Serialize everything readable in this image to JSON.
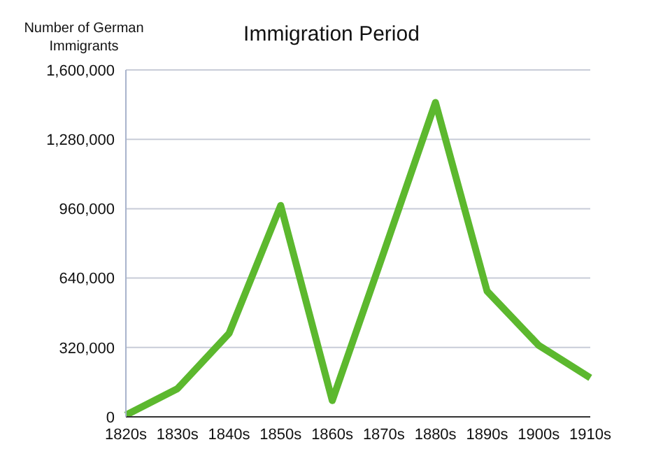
{
  "chart_data": {
    "type": "line",
    "title": "Immigration Period",
    "ylabel": "Number of German Immigrants",
    "categories": [
      "1820s",
      "1830s",
      "1840s",
      "1850s",
      "1860s",
      "1870s",
      "1880s",
      "1890s",
      "1900s",
      "1910s"
    ],
    "series": [
      {
        "color": "#5cb82e",
        "values": [
          8000,
          130000,
          385000,
          975000,
          75000,
          760000,
          1450000,
          580000,
          330000,
          180000
        ]
      }
    ],
    "ylim": [
      0,
      1600000
    ],
    "yticks": [
      0,
      {
        "value": 320000,
        "label": "320,000"
      },
      {
        "value": 640000,
        "label": "640,000"
      },
      {
        "value": 960000,
        "label": "960,000"
      },
      {
        "value": 1280000,
        "label": "1,280,000"
      },
      {
        "value": 1600000,
        "label": "1,600,000"
      }
    ],
    "grid": "y",
    "legend": false,
    "marker": "none",
    "line_style": "solid"
  }
}
